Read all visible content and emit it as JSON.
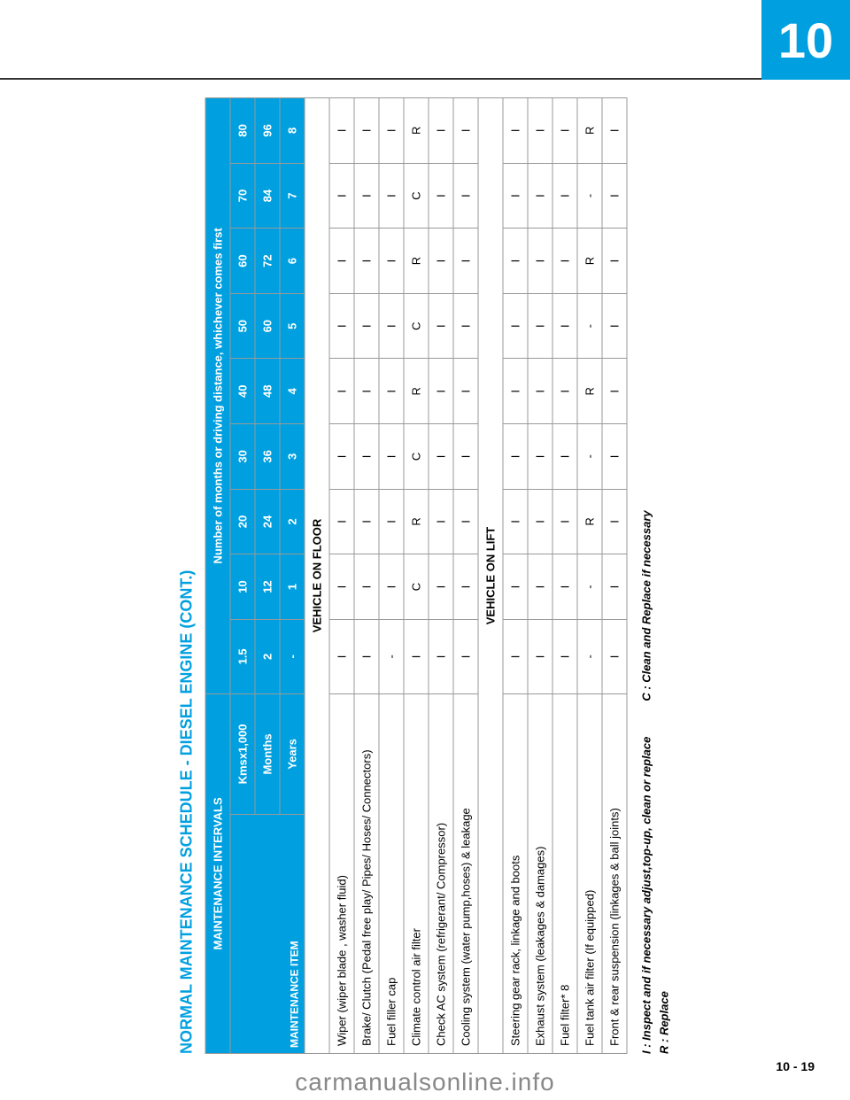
{
  "chapter_number": "10",
  "page_number": "10 - 19",
  "watermark": "carmanualsonline.info",
  "title": "NORMAL MAINTENANCE SCHEDULE - DIESEL ENGINE (CONT.)",
  "header": {
    "intervals_label": "MAINTENANCE INTERVALS",
    "item_label": "MAINTENANCE ITEM",
    "span_label": "Number of months or driving distance, whichever comes first",
    "rows": [
      {
        "label": "Kmsx1,000",
        "values": [
          "1.5",
          "10",
          "20",
          "30",
          "40",
          "50",
          "60",
          "70",
          "80"
        ]
      },
      {
        "label": "Months",
        "values": [
          "2",
          "12",
          "24",
          "36",
          "48",
          "60",
          "72",
          "84",
          "96"
        ]
      },
      {
        "label": "Years",
        "values": [
          "-",
          "1",
          "2",
          "3",
          "4",
          "5",
          "6",
          "7",
          "8"
        ]
      }
    ]
  },
  "sections": [
    {
      "title": "VEHICLE ON FLOOR",
      "rows": [
        {
          "item": "Wiper (wiper blade , washer fluid)",
          "values": [
            "I",
            "I",
            "I",
            "I",
            "I",
            "I",
            "I",
            "I",
            "I"
          ]
        },
        {
          "item": "Brake/ Clutch (Pedal free play/ Pipes/ Hoses/ Connectors)",
          "values": [
            "I",
            "I",
            "I",
            "I",
            "I",
            "I",
            "I",
            "I",
            "I"
          ]
        },
        {
          "item": "Fuel filler cap",
          "values": [
            "-",
            "I",
            "I",
            "I",
            "I",
            "I",
            "I",
            "I",
            "I"
          ]
        },
        {
          "item": "Climate control air filter",
          "values": [
            "I",
            "C",
            "R",
            "C",
            "R",
            "C",
            "R",
            "C",
            "R"
          ]
        },
        {
          "item": "Check AC system (refrigerant/ Compressor)",
          "values": [
            "I",
            "I",
            "I",
            "I",
            "I",
            "I",
            "I",
            "I",
            "I"
          ]
        },
        {
          "item": "Cooling system (water pump,hoses) & leakage",
          "values": [
            "I",
            "I",
            "I",
            "I",
            "I",
            "I",
            "I",
            "I",
            "I"
          ]
        }
      ]
    },
    {
      "title": "VEHICLE ON LIFT",
      "rows": [
        {
          "item": "Steering gear rack, linkage and boots",
          "values": [
            "I",
            "I",
            "I",
            "I",
            "I",
            "I",
            "I",
            "I",
            "I"
          ]
        },
        {
          "item": "Exhaust system (leakages & damages)",
          "values": [
            "I",
            "I",
            "I",
            "I",
            "I",
            "I",
            "I",
            "I",
            "I"
          ]
        },
        {
          "item": "Fuel filter* 8",
          "values": [
            "I",
            "I",
            "I",
            "I",
            "I",
            "I",
            "I",
            "I",
            "I"
          ]
        },
        {
          "item": "Fuel tank air filter (If equipped)",
          "values": [
            "-",
            "-",
            "R",
            "-",
            "R",
            "-",
            "R",
            "-",
            "R"
          ]
        },
        {
          "item": "Front & rear suspension (linkages & ball joints)",
          "values": [
            "I",
            "I",
            "I",
            "I",
            "I",
            "I",
            "I",
            "I",
            "I"
          ]
        }
      ]
    }
  ],
  "legend": {
    "I": "I  : Inspect and if necessary adjust,top-up, clean or replace",
    "C": "C  : Clean and Replace if necessary",
    "R": "R  : Replace"
  },
  "colors": {
    "accent": "#00a0e0",
    "border": "#999999",
    "text": "#000000",
    "bg": "#ffffff"
  }
}
